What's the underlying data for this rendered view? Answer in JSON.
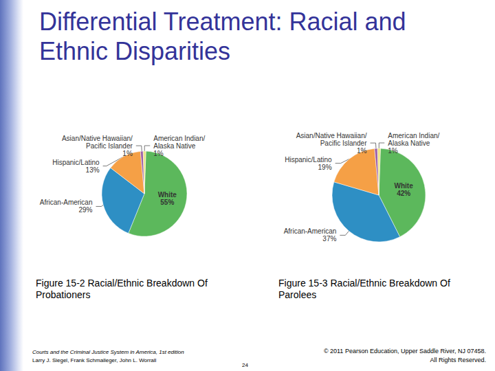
{
  "slide": {
    "title": "Differential Treatment: Racial and Ethnic Disparities",
    "footer": {
      "book": "Courts and the Criminal Justice System in America, 1st edition",
      "authors": "Larry J. Siegel, Frank Schmalleger, John L. Worrall",
      "page": 24,
      "copyright": [
        "© 2011 Pearson Education, Upper Saddle River, NJ 07458.",
        "All Rights Reserved."
      ]
    }
  },
  "chart_data": [
    {
      "type": "pie",
      "title": "Figure 15-2 Racial/Ethnic Breakdown Of Probationers",
      "categories": [
        "White",
        "African-American",
        "Hispanic/Latino",
        "Asian/Native Hawaiian/\nPacific Islander",
        "American Indian/\nAlaska Native"
      ],
      "values": [
        55,
        29,
        13,
        1,
        1
      ],
      "value_labels": [
        "55%",
        "29%",
        "13%",
        "1%",
        "1%"
      ],
      "colors": [
        "#5cb85c",
        "#2e8fc4",
        "#f5a046",
        "#9c5fa8",
        "#ece486"
      ],
      "data_labels": true
    },
    {
      "type": "pie",
      "title": "Figure 15-3 Racial/Ethnic Breakdown Of Parolees",
      "categories": [
        "White",
        "African-American",
        "Hispanic/Latino",
        "Asian/Native Hawaiian/\nPacific Islander",
        "American Indian/\nAlaska Native"
      ],
      "values": [
        42,
        37,
        19,
        1,
        1
      ],
      "value_labels": [
        "42%",
        "37%",
        "19%",
        "1%",
        "1%"
      ],
      "colors": [
        "#5cb85c",
        "#2e8fc4",
        "#f5a046",
        "#9c5fa8",
        "#ece486"
      ],
      "data_labels": true
    }
  ]
}
